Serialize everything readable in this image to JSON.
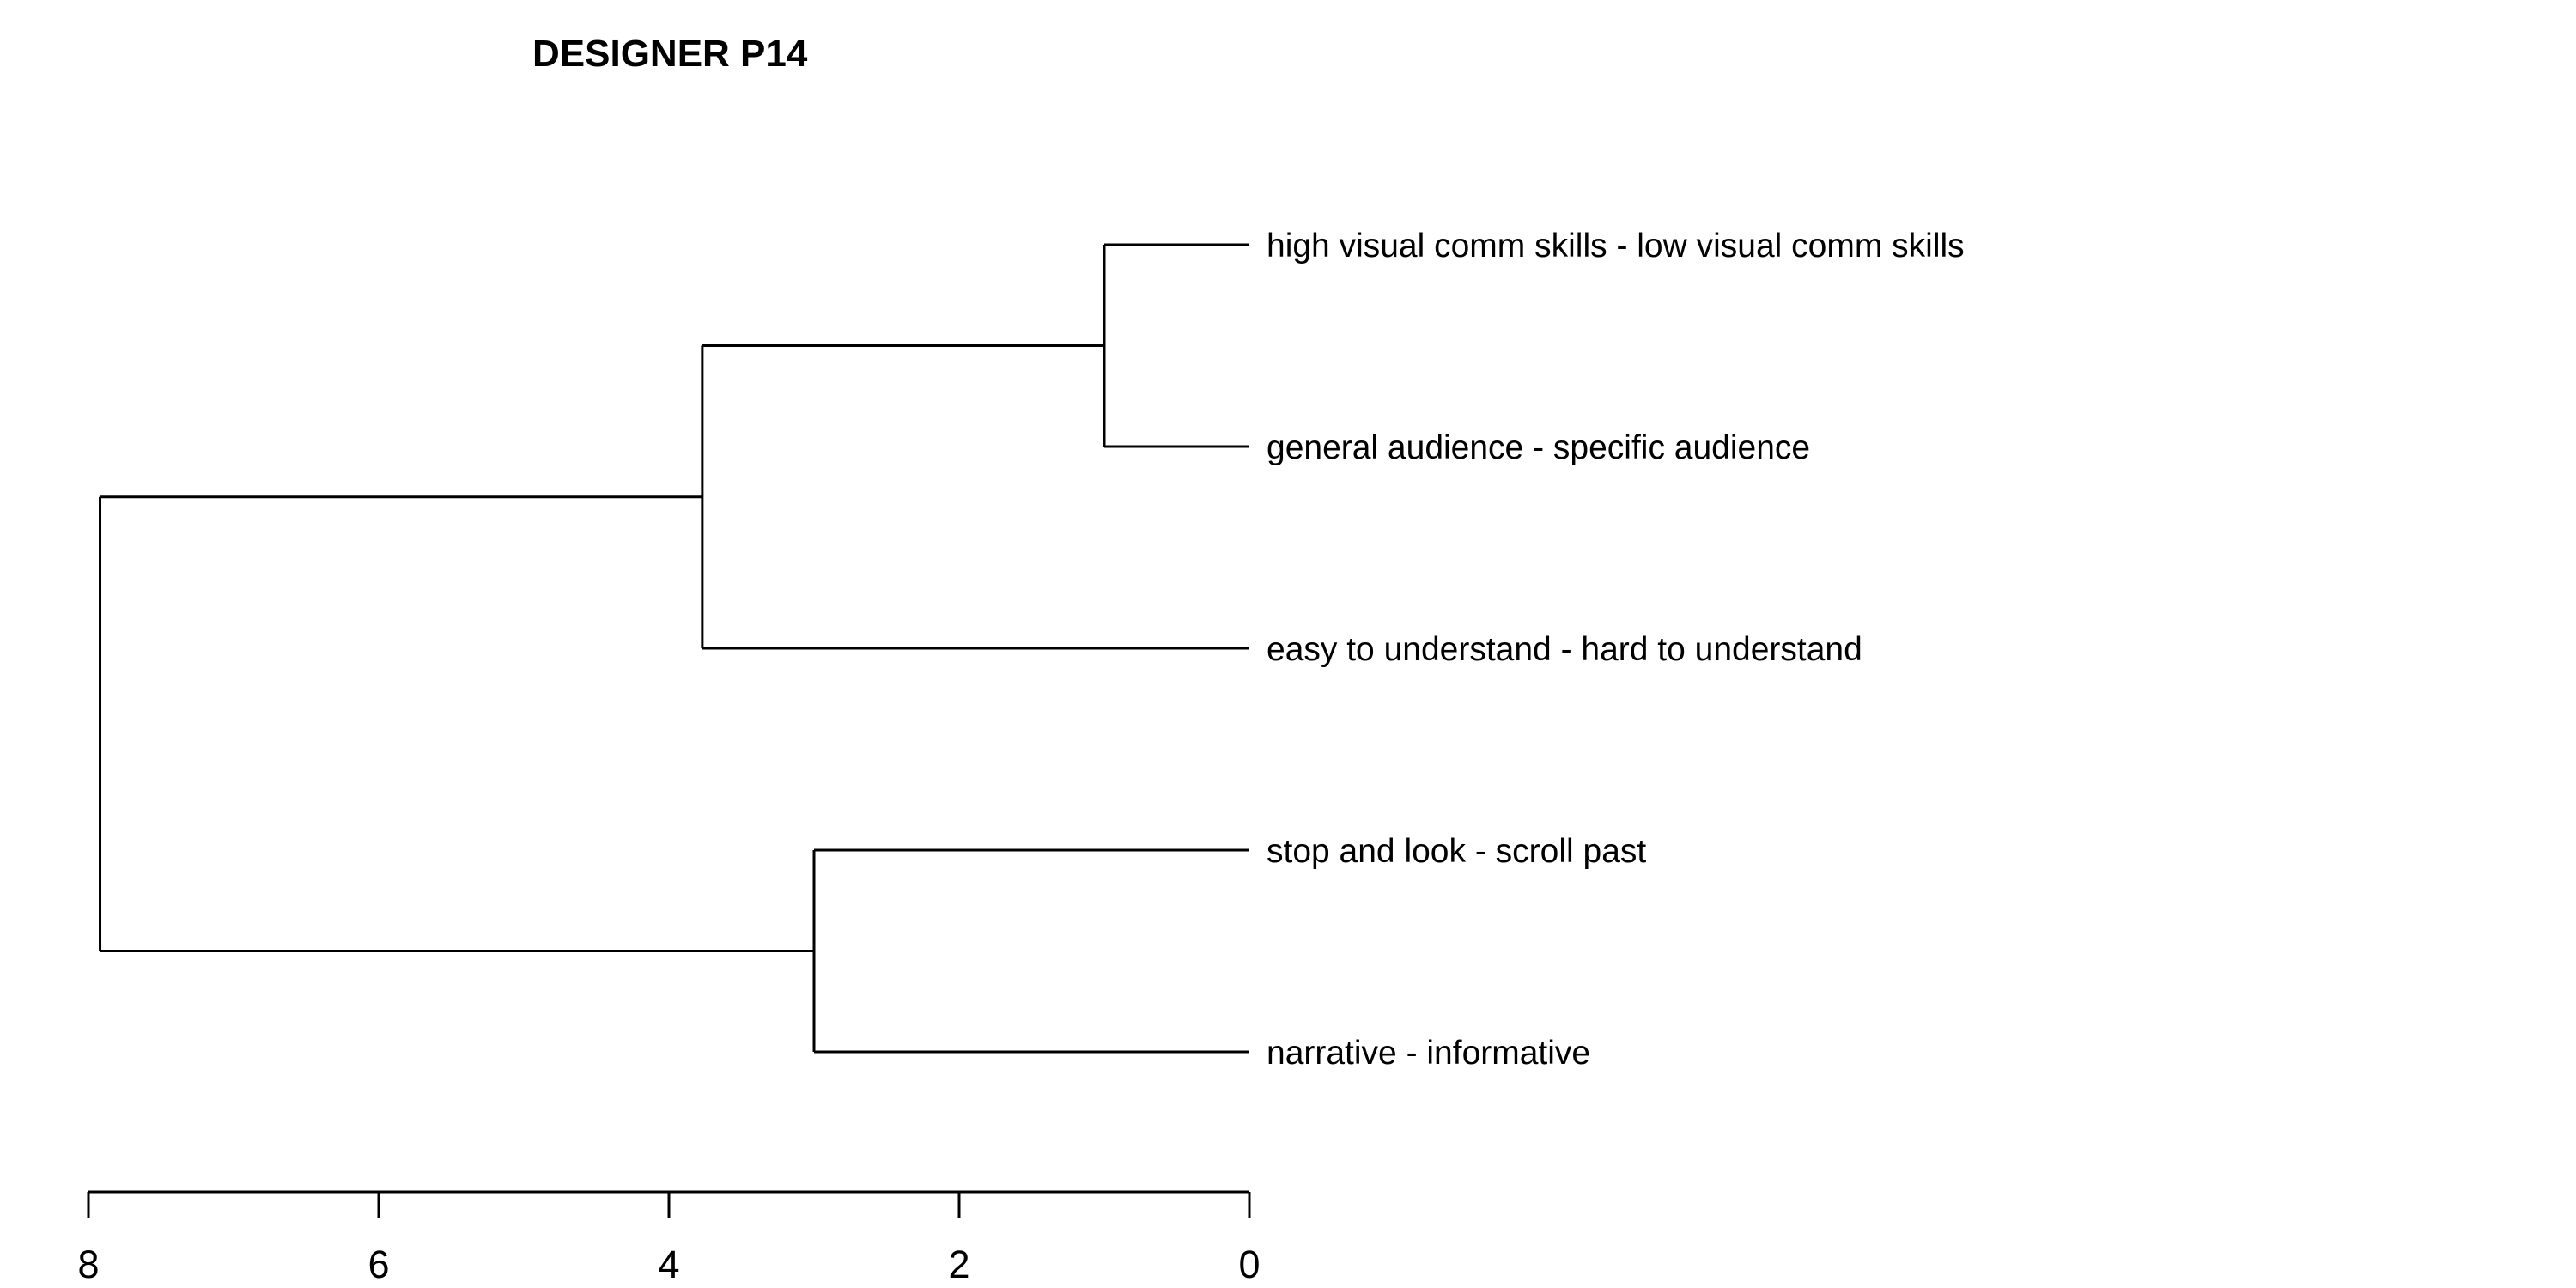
{
  "chart_data": {
    "type": "dendrogram",
    "title": "DESIGNER P14",
    "orientation": "horizontal",
    "leaves": [
      "high visual comm skills - low visual comm skills",
      "general audience - specific audience",
      "easy to understand - hard to understand",
      "stop and look - scroll past",
      "narrative - informative"
    ],
    "merges": [
      {
        "id": "m1",
        "left": "leaf:0",
        "right": "leaf:1",
        "height": 1.0
      },
      {
        "id": "m2",
        "left": "merge:m1",
        "right": "leaf:2",
        "height": 3.77
      },
      {
        "id": "m3",
        "left": "leaf:3",
        "right": "leaf:4",
        "height": 3.0
      },
      {
        "id": "m4",
        "left": "merge:m2",
        "right": "merge:m3",
        "height": 7.92
      }
    ],
    "xaxis": {
      "ticks": [
        8,
        6,
        4,
        2,
        0
      ],
      "range": [
        8,
        0
      ]
    },
    "colors": {
      "line": "#000000",
      "text": "#000000",
      "background": "#ffffff"
    }
  }
}
